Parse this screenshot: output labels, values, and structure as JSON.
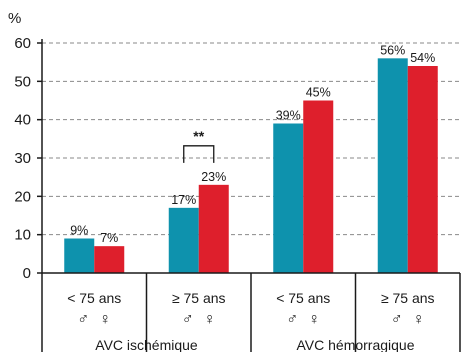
{
  "chart_data": {
    "type": "bar",
    "ylabel": "%",
    "ylim": [
      0,
      60
    ],
    "yticks": [
      0,
      10,
      20,
      30,
      40,
      50,
      60
    ],
    "grid": true,
    "categories": [
      "< 75 ans",
      "≥ 75 ans",
      "< 75 ans",
      "≥ 75 ans"
    ],
    "sex_labels": [
      "♂",
      "♀"
    ],
    "groups": [
      "AVC ischémique",
      "AVC hémorragique"
    ],
    "series": [
      {
        "color": "#0e92ad",
        "values": [
          9,
          17,
          39,
          56
        ],
        "value_labels": [
          "9%",
          "17%",
          "39%",
          "56%"
        ]
      },
      {
        "color": "#de1f2c",
        "values": [
          7,
          23,
          45,
          54
        ],
        "value_labels": [
          "7%",
          "23%",
          "45%",
          "54%"
        ]
      }
    ],
    "annotations": [
      {
        "text": "**",
        "category_index": 1
      }
    ]
  }
}
